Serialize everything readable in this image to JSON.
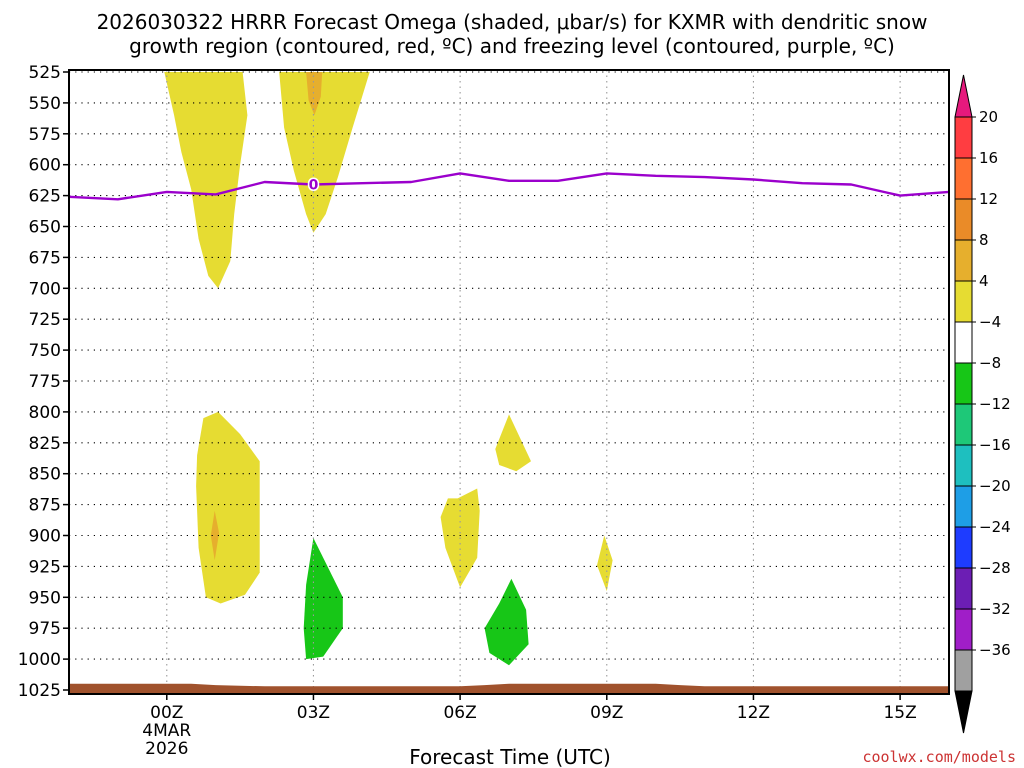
{
  "chart_data": {
    "type": "time-height cross section",
    "title_line1": "2026030322 HRRR Forecast Omega (shaded, μbar/s) for KXMR with dendritic snow",
    "title_line2": "growth region (contoured, red, ºC) and freezing level (contoured, purple, ºC)",
    "xlabel": "Forecast Time (UTC)",
    "credit": "coolwx.com/models",
    "x_range_hours": [
      -2,
      16
    ],
    "y_range_mb": [
      525,
      1025
    ],
    "y_ticks": [
      525,
      550,
      575,
      600,
      625,
      650,
      675,
      700,
      725,
      750,
      775,
      800,
      825,
      850,
      875,
      900,
      925,
      950,
      975,
      1000,
      1025
    ],
    "x_ticks": [
      {
        "hour": 0,
        "label": "00Z",
        "sub1": "4MAR",
        "sub2": "2026"
      },
      {
        "hour": 3,
        "label": "03Z",
        "sub1": "",
        "sub2": ""
      },
      {
        "hour": 6,
        "label": "06Z",
        "sub1": "",
        "sub2": ""
      },
      {
        "hour": 9,
        "label": "09Z",
        "sub1": "",
        "sub2": ""
      },
      {
        "hour": 12,
        "label": "12Z",
        "sub1": "",
        "sub2": ""
      },
      {
        "hour": 15,
        "label": "15Z",
        "sub1": "",
        "sub2": ""
      }
    ],
    "freezing_level": {
      "label": "0",
      "label_point": [
        3.0,
        616
      ],
      "points": [
        [
          -2.0,
          626
        ],
        [
          -1.0,
          628
        ],
        [
          0.0,
          622
        ],
        [
          1.0,
          624
        ],
        [
          2.0,
          614
        ],
        [
          3.0,
          616
        ],
        [
          4.0,
          615
        ],
        [
          5.0,
          614
        ],
        [
          6.0,
          607
        ],
        [
          7.0,
          613
        ],
        [
          8.0,
          613
        ],
        [
          9.0,
          607
        ],
        [
          10.0,
          609
        ],
        [
          11.0,
          610
        ],
        [
          12.0,
          612
        ],
        [
          13.0,
          615
        ],
        [
          14.0,
          616
        ],
        [
          15.0,
          625
        ],
        [
          16.0,
          622
        ]
      ]
    },
    "omega_regions": [
      {
        "value": 4,
        "color": "#e6dc32",
        "points": [
          [
            -0.05,
            525
          ],
          [
            1.55,
            525
          ],
          [
            1.65,
            560
          ],
          [
            1.5,
            600
          ],
          [
            1.38,
            640
          ],
          [
            1.3,
            678
          ],
          [
            1.05,
            700
          ],
          [
            0.85,
            690
          ],
          [
            0.65,
            660
          ],
          [
            0.5,
            620
          ],
          [
            0.3,
            590
          ],
          [
            0.15,
            560
          ]
        ]
      },
      {
        "value": 4,
        "color": "#e6dc32",
        "points": [
          [
            2.3,
            525
          ],
          [
            4.15,
            525
          ],
          [
            3.8,
            570
          ],
          [
            3.5,
            610
          ],
          [
            3.25,
            640
          ],
          [
            3.0,
            655
          ],
          [
            2.85,
            640
          ],
          [
            2.6,
            605
          ],
          [
            2.4,
            570
          ]
        ]
      },
      {
        "value": 8,
        "color": "#e6af2d",
        "points": [
          [
            2.85,
            525
          ],
          [
            3.18,
            525
          ],
          [
            3.15,
            545
          ],
          [
            3.02,
            560
          ],
          [
            2.9,
            548
          ]
        ]
      },
      {
        "value": 4,
        "color": "#e6dc32",
        "points": [
          [
            0.75,
            805
          ],
          [
            1.05,
            800
          ],
          [
            1.5,
            818
          ],
          [
            1.9,
            840
          ],
          [
            1.9,
            910
          ],
          [
            1.9,
            930
          ],
          [
            1.6,
            948
          ],
          [
            1.1,
            955
          ],
          [
            0.8,
            950
          ],
          [
            0.65,
            910
          ],
          [
            0.6,
            860
          ],
          [
            0.62,
            835
          ]
        ]
      },
      {
        "value": 8,
        "color": "#e6af2d",
        "points": [
          [
            0.98,
            880
          ],
          [
            1.07,
            898
          ],
          [
            0.98,
            920
          ],
          [
            0.9,
            900
          ]
        ]
      },
      {
        "value": 4,
        "color": "#e6dc32",
        "points": [
          [
            7.0,
            802
          ],
          [
            7.45,
            840
          ],
          [
            7.15,
            848
          ],
          [
            6.8,
            843
          ],
          [
            6.72,
            830
          ]
        ]
      },
      {
        "value": 4,
        "color": "#e6dc32",
        "points": [
          [
            5.95,
            870
          ],
          [
            6.35,
            862
          ],
          [
            6.4,
            880
          ],
          [
            6.35,
            918
          ],
          [
            6.0,
            942
          ],
          [
            5.7,
            910
          ],
          [
            5.6,
            885
          ],
          [
            5.75,
            870
          ]
        ]
      },
      {
        "value": 4,
        "color": "#e6dc32",
        "points": [
          [
            8.95,
            900
          ],
          [
            9.12,
            920
          ],
          [
            9.0,
            945
          ],
          [
            8.8,
            924
          ]
        ]
      },
      {
        "value": -4,
        "color": "#17c617",
        "points": [
          [
            3.0,
            902
          ],
          [
            3.6,
            950
          ],
          [
            3.6,
            975
          ],
          [
            3.2,
            998
          ],
          [
            2.85,
            1000
          ],
          [
            2.8,
            975
          ],
          [
            2.85,
            940
          ]
        ]
      },
      {
        "value": -4,
        "color": "#17c617",
        "points": [
          [
            7.05,
            935
          ],
          [
            7.35,
            960
          ],
          [
            7.4,
            988
          ],
          [
            7.0,
            1005
          ],
          [
            6.6,
            995
          ],
          [
            6.5,
            975
          ],
          [
            6.8,
            955
          ]
        ]
      }
    ],
    "ground": {
      "color": "#a0522d",
      "top_points": [
        [
          -2.0,
          1020
        ],
        [
          0.0,
          1020
        ],
        [
          0.5,
          1020
        ],
        [
          1.0,
          1021
        ],
        [
          2.0,
          1022
        ],
        [
          4.0,
          1022
        ],
        [
          6.0,
          1022
        ],
        [
          6.5,
          1021
        ],
        [
          7.0,
          1020
        ],
        [
          9.0,
          1020
        ],
        [
          10.0,
          1020
        ],
        [
          10.5,
          1021
        ],
        [
          11.0,
          1022
        ],
        [
          16.0,
          1022
        ]
      ]
    },
    "colorbar": {
      "levels": [
        "20",
        "16",
        "12",
        "8",
        "4",
        "−4",
        "−8",
        "−12",
        "−16",
        "−20",
        "−24",
        "−28",
        "−32",
        "−36"
      ],
      "colors": [
        "#ff3d41",
        "#ff6f30",
        "#ea8b28",
        "#e6af2d",
        "#e6dc32",
        "#ffffff",
        "#17c617",
        "#1ec878",
        "#1ebfbf",
        "#1e9ee6",
        "#1e3cff",
        "#6c1eb4",
        "#a01ec8",
        "#a0a0a0"
      ],
      "top_triangle_color": "#e6197d",
      "bottom_triangle_color": "#000000"
    }
  }
}
